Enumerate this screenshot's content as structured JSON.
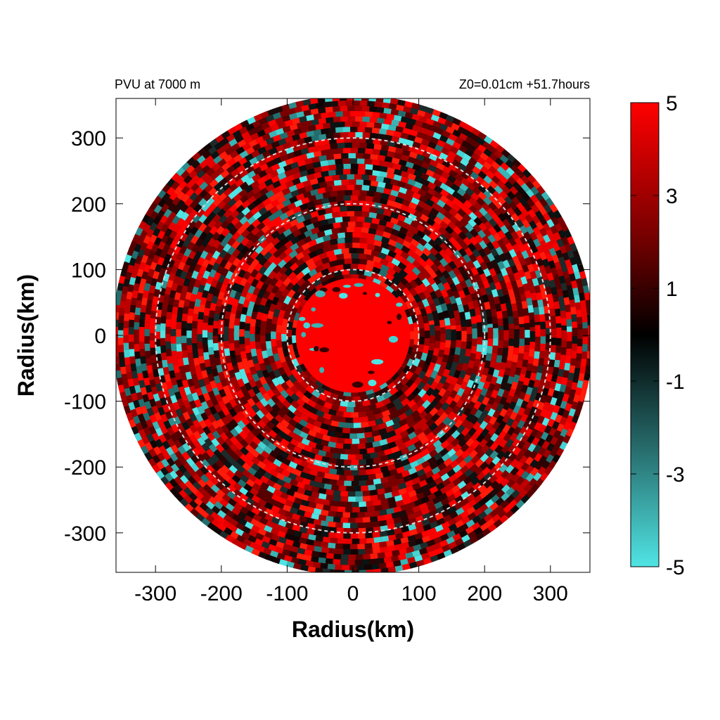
{
  "chart_data": {
    "type": "heatmap",
    "title_left": "PVU at  7000 m",
    "title_right": "Z0=0.01cm  +51.7hours",
    "xlabel": "Radius(km)",
    "ylabel": "Radius(km)",
    "xlim": [
      -360,
      360
    ],
    "ylim": [
      -360,
      360
    ],
    "x_ticks": [
      -300,
      -200,
      -100,
      0,
      100,
      200,
      300
    ],
    "y_ticks": [
      300,
      200,
      100,
      0,
      -100,
      -200,
      -300
    ],
    "domain_radius_km": 360,
    "core_radius_km": 85,
    "reference_circles_km": [
      100,
      200,
      300
    ],
    "colorbar": {
      "range": [
        -5,
        5
      ],
      "ticks": [
        5,
        3,
        1,
        -1,
        -3,
        -5
      ],
      "colors": {
        "high": "#ff0000",
        "zero": "#000000",
        "low": "#50e4e4"
      }
    },
    "grid": false,
    "legend": "none"
  }
}
